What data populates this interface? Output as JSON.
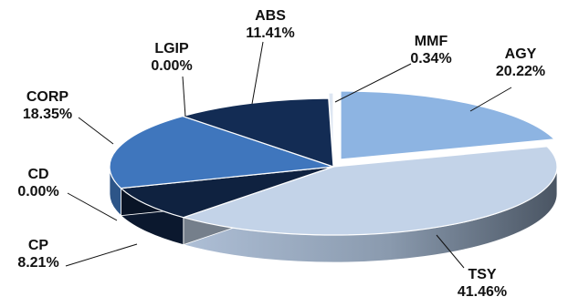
{
  "chart_data": {
    "type": "pie",
    "title": "",
    "slices": [
      {
        "label": "AGY",
        "value": 20.22,
        "value_label": "20.22%",
        "color": "#8db4e2"
      },
      {
        "label": "TSY",
        "value": 41.46,
        "value_label": "41.46%",
        "color": "#c3d3e8"
      },
      {
        "label": "CP",
        "value": 8.21,
        "value_label": "8.21%",
        "color": "#0f2240"
      },
      {
        "label": "CD",
        "value": 0.0,
        "value_label": "0.00%",
        "color": "#1d3f6e"
      },
      {
        "label": "CORP",
        "value": 18.35,
        "value_label": "18.35%",
        "color": "#3f76bd"
      },
      {
        "label": "LGIP",
        "value": 0.0,
        "value_label": "0.00%",
        "color": "#2a5590"
      },
      {
        "label": "ABS",
        "value": 11.41,
        "value_label": "11.41%",
        "color": "#132c54"
      },
      {
        "label": "MMF",
        "value": 0.34,
        "value_label": "0.34%",
        "color": "#dde6f2"
      }
    ],
    "style": "3d-exploded",
    "legend": "none"
  }
}
